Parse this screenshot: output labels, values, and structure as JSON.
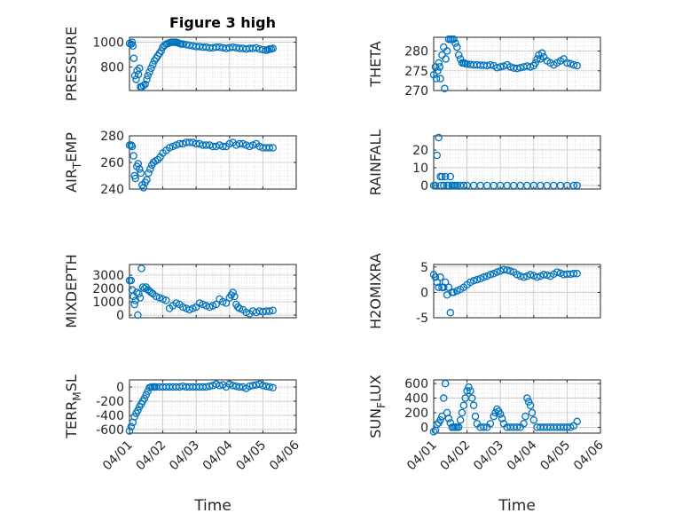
{
  "figure_title": "Figure 3 high",
  "x_tick_labels": [
    "04/01",
    "04/02",
    "04/03",
    "04/04",
    "04/05",
    "04/06"
  ],
  "x_label": "Time",
  "colors": {
    "marker": "#0072BD",
    "axis": "#262626",
    "grid": "#d0d0d0"
  },
  "chart_data": [
    {
      "type": "scatter",
      "title": "Figure 3 high",
      "ylabel": "PRESSURE",
      "xlabel": "",
      "ylim": [
        610,
        1040
      ],
      "yticks": [
        800,
        1000
      ],
      "ytick_labels": [
        "800",
        "1000"
      ],
      "x": [
        0.0,
        0.05,
        0.08,
        0.1,
        0.13,
        0.16,
        0.2,
        0.23,
        0.27,
        0.3,
        0.33,
        0.37,
        0.42,
        0.47,
        0.52,
        0.55,
        0.6,
        0.65,
        0.7,
        0.75,
        0.8,
        0.85,
        0.9,
        0.95,
        1.0,
        1.05,
        1.1,
        1.15,
        1.2,
        1.25,
        1.3,
        1.35,
        1.4,
        1.45,
        1.5,
        1.55,
        1.6,
        1.7,
        1.8,
        1.9,
        2.0,
        2.1,
        2.2,
        2.3,
        2.4,
        2.5,
        2.6,
        2.7,
        2.8,
        2.9,
        3.0,
        3.1,
        3.2,
        3.3,
        3.4,
        3.5,
        3.6,
        3.7,
        3.8,
        3.9,
        4.0,
        4.1,
        4.15,
        4.2,
        4.25,
        4.3
      ],
      "y": [
        990,
        985,
        1000,
        970,
        870,
        730,
        700,
        770,
        740,
        790,
        640,
        640,
        650,
        660,
        700,
        730,
        760,
        790,
        820,
        850,
        870,
        890,
        910,
        930,
        960,
        975,
        985,
        990,
        995,
        1000,
        1000,
        1000,
        1000,
        995,
        990,
        985,
        985,
        980,
        975,
        970,
        965,
        965,
        960,
        960,
        955,
        955,
        960,
        960,
        955,
        950,
        955,
        960,
        955,
        950,
        950,
        945,
        950,
        950,
        955,
        945,
        940,
        935,
        940,
        945,
        945,
        950
      ]
    },
    {
      "type": "scatter",
      "ylabel": "THETA",
      "xlabel": "",
      "ylim": [
        270,
        283.5
      ],
      "yticks": [
        270,
        275,
        280
      ],
      "ytick_labels": [
        "270",
        "275",
        "280"
      ],
      "x": [
        0.0,
        0.05,
        0.08,
        0.12,
        0.15,
        0.18,
        0.2,
        0.25,
        0.3,
        0.33,
        0.36,
        0.4,
        0.45,
        0.5,
        0.55,
        0.6,
        0.65,
        0.7,
        0.75,
        0.8,
        0.85,
        0.9,
        0.95,
        1.0,
        1.1,
        1.2,
        1.3,
        1.4,
        1.5,
        1.6,
        1.7,
        1.8,
        1.9,
        2.0,
        2.1,
        2.2,
        2.3,
        2.4,
        2.5,
        2.6,
        2.7,
        2.8,
        2.9,
        3.0,
        3.05,
        3.1,
        3.15,
        3.2,
        3.25,
        3.3,
        3.4,
        3.5,
        3.6,
        3.7,
        3.8,
        3.9,
        4.0,
        4.1,
        4.2,
        4.3
      ],
      "y": [
        274,
        276,
        273,
        275,
        277,
        276,
        273,
        279,
        281,
        270.5,
        278,
        280,
        283,
        283,
        283,
        283,
        282,
        281,
        279,
        278,
        277,
        277,
        276.8,
        276.7,
        276.6,
        276.5,
        276.5,
        276.4,
        276.4,
        276.3,
        276.5,
        276.3,
        275.8,
        276.0,
        276.2,
        276.5,
        276.0,
        275.7,
        275.6,
        275.8,
        276.0,
        276.2,
        276.0,
        276.3,
        277,
        278,
        279,
        278,
        279.5,
        278.5,
        277.5,
        277,
        276.5,
        277,
        277.5,
        278,
        277,
        276.8,
        276.5,
        276.3
      ]
    },
    {
      "type": "scatter",
      "ylabel": "AIR_TEMP",
      "ylabel_main": "AIR",
      "ylabel_sub": "T",
      "ylabel_rest": "EMP",
      "xlabel": "",
      "ylim": [
        240,
        280
      ],
      "yticks": [
        240,
        260,
        280
      ],
      "ytick_labels": [
        "240",
        "260",
        "280"
      ],
      "x": [
        0.0,
        0.05,
        0.08,
        0.12,
        0.15,
        0.18,
        0.22,
        0.26,
        0.3,
        0.34,
        0.38,
        0.42,
        0.47,
        0.52,
        0.57,
        0.62,
        0.67,
        0.72,
        0.78,
        0.85,
        0.92,
        1.0,
        1.1,
        1.2,
        1.3,
        1.4,
        1.5,
        1.6,
        1.7,
        1.8,
        1.9,
        2.0,
        2.1,
        2.2,
        2.3,
        2.4,
        2.5,
        2.6,
        2.7,
        2.8,
        2.9,
        3.0,
        3.1,
        3.2,
        3.3,
        3.4,
        3.5,
        3.6,
        3.7,
        3.8,
        3.9,
        4.0,
        4.1,
        4.2,
        4.3
      ],
      "y": [
        273,
        273,
        272,
        265,
        250,
        248,
        257,
        259,
        255,
        252,
        243,
        241,
        245,
        247,
        252,
        255,
        258,
        260,
        261,
        262,
        264,
        267,
        269,
        271,
        272,
        273,
        274,
        274,
        275,
        275,
        275,
        274,
        274,
        273,
        273,
        273,
        272,
        272,
        273,
        272,
        272,
        274,
        275,
        273,
        274,
        274,
        273,
        272,
        273,
        274,
        272,
        271,
        271,
        271,
        271
      ],
      "notes": "ylabel rendered as AIR with subscript T followed by EMP"
    },
    {
      "type": "scatter",
      "ylabel": "RAINFALL",
      "xlabel": "",
      "ylim": [
        -2,
        28
      ],
      "yticks": [
        0,
        10,
        20
      ],
      "ytick_labels": [
        "0",
        "10",
        "20"
      ],
      "x": [
        0.0,
        0.05,
        0.1,
        0.15,
        0.2,
        0.22,
        0.25,
        0.3,
        0.35,
        0.4,
        0.45,
        0.5,
        0.55,
        0.6,
        0.65,
        0.7,
        0.8,
        0.9,
        1.0,
        1.2,
        1.4,
        1.6,
        1.8,
        2.0,
        2.2,
        2.4,
        2.6,
        2.8,
        3.0,
        3.2,
        3.4,
        3.6,
        3.8,
        4.0,
        4.2,
        4.3
      ],
      "y": [
        0,
        0,
        17,
        27,
        5,
        0,
        5,
        0,
        5,
        0,
        0,
        5,
        0,
        0,
        0,
        0,
        0,
        0,
        0,
        0,
        0,
        0,
        0,
        0,
        0,
        0,
        0,
        0,
        0,
        0,
        0,
        0,
        0,
        0,
        0,
        0
      ]
    },
    {
      "type": "scatter",
      "ylabel": "MIXDEPTH",
      "xlabel": "",
      "ylim": [
        -200,
        3800
      ],
      "yticks": [
        0,
        1000,
        2000,
        3000
      ],
      "ytick_labels": [
        "0",
        "1000",
        "2000",
        "3000"
      ],
      "x": [
        0.0,
        0.05,
        0.08,
        0.12,
        0.15,
        0.18,
        0.22,
        0.25,
        0.28,
        0.32,
        0.36,
        0.4,
        0.45,
        0.5,
        0.55,
        0.6,
        0.65,
        0.7,
        0.8,
        0.9,
        1.0,
        1.1,
        1.2,
        1.3,
        1.4,
        1.5,
        1.6,
        1.7,
        1.8,
        1.9,
        2.0,
        2.1,
        2.2,
        2.3,
        2.4,
        2.5,
        2.6,
        2.7,
        2.8,
        2.9,
        3.0,
        3.05,
        3.1,
        3.15,
        3.2,
        3.25,
        3.3,
        3.4,
        3.5,
        3.6,
        3.7,
        3.8,
        3.9,
        4.0,
        4.1,
        4.2,
        4.3
      ],
      "y": [
        2600,
        2600,
        1900,
        1400,
        800,
        1100,
        1700,
        0,
        1600,
        1300,
        3500,
        2100,
        2000,
        2100,
        1900,
        1800,
        1700,
        1600,
        1400,
        1300,
        1200,
        1100,
        500,
        700,
        900,
        800,
        600,
        500,
        400,
        500,
        600,
        900,
        800,
        700,
        600,
        700,
        800,
        1200,
        1000,
        900,
        1300,
        1500,
        1700,
        1400,
        800,
        600,
        500,
        400,
        200,
        100,
        300,
        200,
        300,
        250,
        300,
        300,
        350
      ]
    },
    {
      "type": "scatter",
      "ylabel": "H2OMIXRA",
      "xlabel": "",
      "ylim": [
        -5,
        5.5
      ],
      "yticks": [
        -5,
        0,
        5
      ],
      "ytick_labels": [
        "-5",
        "0",
        "5"
      ],
      "x": [
        0.0,
        0.05,
        0.1,
        0.15,
        0.2,
        0.25,
        0.3,
        0.35,
        0.4,
        0.45,
        0.5,
        0.55,
        0.6,
        0.7,
        0.8,
        0.9,
        1.0,
        1.1,
        1.2,
        1.3,
        1.4,
        1.5,
        1.6,
        1.7,
        1.8,
        1.9,
        2.0,
        2.1,
        2.2,
        2.3,
        2.4,
        2.5,
        2.6,
        2.7,
        2.8,
        2.9,
        3.0,
        3.1,
        3.2,
        3.3,
        3.4,
        3.5,
        3.6,
        3.7,
        3.8,
        3.9,
        4.0,
        4.1,
        4.2,
        4.3
      ],
      "y": [
        3.5,
        3,
        2,
        1,
        3,
        1,
        1,
        2,
        -0.5,
        1,
        -4,
        0,
        0,
        0.3,
        0.6,
        1,
        1.5,
        2,
        2.3,
        2.5,
        2.7,
        3,
        3.2,
        3.5,
        3.7,
        4,
        4.2,
        4.5,
        4.4,
        4.2,
        4,
        3.5,
        3.2,
        3,
        3.2,
        3.5,
        3.3,
        3,
        3.2,
        3.5,
        3.4,
        3.2,
        3.6,
        4,
        3.8,
        3.5,
        3.6,
        3.6,
        3.7,
        3.7
      ]
    },
    {
      "type": "scatter",
      "ylabel": "TERR_MSL",
      "ylabel_main": "TERR",
      "ylabel_sub": "M",
      "ylabel_rest": "SL",
      "xlabel": "Time",
      "ylim": [
        -650,
        100
      ],
      "yticks": [
        -600,
        -400,
        -200,
        0
      ],
      "ytick_labels": [
        "-600",
        "-400",
        "-200",
        "0"
      ],
      "x": [
        0.0,
        0.05,
        0.1,
        0.15,
        0.2,
        0.25,
        0.3,
        0.35,
        0.4,
        0.45,
        0.5,
        0.55,
        0.6,
        0.65,
        0.7,
        0.75,
        0.8,
        0.9,
        1.0,
        1.1,
        1.2,
        1.3,
        1.4,
        1.5,
        1.6,
        1.7,
        1.8,
        1.9,
        2.0,
        2.1,
        2.2,
        2.3,
        2.4,
        2.5,
        2.6,
        2.7,
        2.8,
        2.9,
        3.0,
        3.1,
        3.2,
        3.3,
        3.4,
        3.5,
        3.6,
        3.7,
        3.8,
        3.9,
        4.0,
        4.1,
        4.2,
        4.3
      ],
      "y": [
        -620,
        -560,
        -500,
        -420,
        -370,
        -330,
        -280,
        -240,
        -200,
        -160,
        -110,
        -60,
        -10,
        0,
        0,
        0,
        0,
        0,
        0,
        0,
        0,
        0,
        0,
        0,
        10,
        0,
        0,
        0,
        0,
        0,
        0,
        0,
        10,
        20,
        40,
        20,
        30,
        0,
        40,
        20,
        10,
        0,
        0,
        -20,
        10,
        20,
        30,
        40,
        20,
        10,
        0,
        -10
      ]
    },
    {
      "type": "scatter",
      "ylabel": "SUN_FLUX",
      "ylabel_main": "SUN",
      "ylabel_sub": "F",
      "ylabel_rest": "LUX",
      "xlabel": "Time",
      "ylim": [
        -80,
        650
      ],
      "yticks": [
        0,
        200,
        400,
        600
      ],
      "ytick_labels": [
        "0",
        "200",
        "400",
        "600"
      ],
      "x": [
        0.0,
        0.05,
        0.1,
        0.15,
        0.2,
        0.25,
        0.3,
        0.35,
        0.4,
        0.45,
        0.5,
        0.55,
        0.6,
        0.65,
        0.7,
        0.75,
        0.8,
        0.85,
        0.9,
        0.95,
        1.0,
        1.05,
        1.1,
        1.15,
        1.2,
        1.25,
        1.3,
        1.4,
        1.5,
        1.6,
        1.7,
        1.8,
        1.85,
        1.9,
        1.95,
        2.0,
        2.05,
        2.1,
        2.2,
        2.3,
        2.4,
        2.5,
        2.6,
        2.7,
        2.75,
        2.8,
        2.85,
        2.9,
        2.95,
        3.0,
        3.1,
        3.2,
        3.3,
        3.4,
        3.5,
        3.6,
        3.7,
        3.8,
        3.9,
        4.0,
        4.1,
        4.2,
        4.3
      ],
      "y": [
        -60,
        -40,
        40,
        60,
        100,
        150,
        400,
        600,
        200,
        120,
        60,
        0,
        0,
        0,
        0,
        0,
        100,
        200,
        300,
        400,
        500,
        550,
        500,
        400,
        300,
        150,
        50,
        0,
        0,
        0,
        50,
        150,
        200,
        250,
        220,
        180,
        120,
        50,
        0,
        0,
        0,
        0,
        0,
        50,
        150,
        400,
        350,
        300,
        200,
        100,
        0,
        0,
        0,
        0,
        0,
        0,
        0,
        0,
        0,
        0,
        0,
        20,
        80
      ]
    }
  ]
}
